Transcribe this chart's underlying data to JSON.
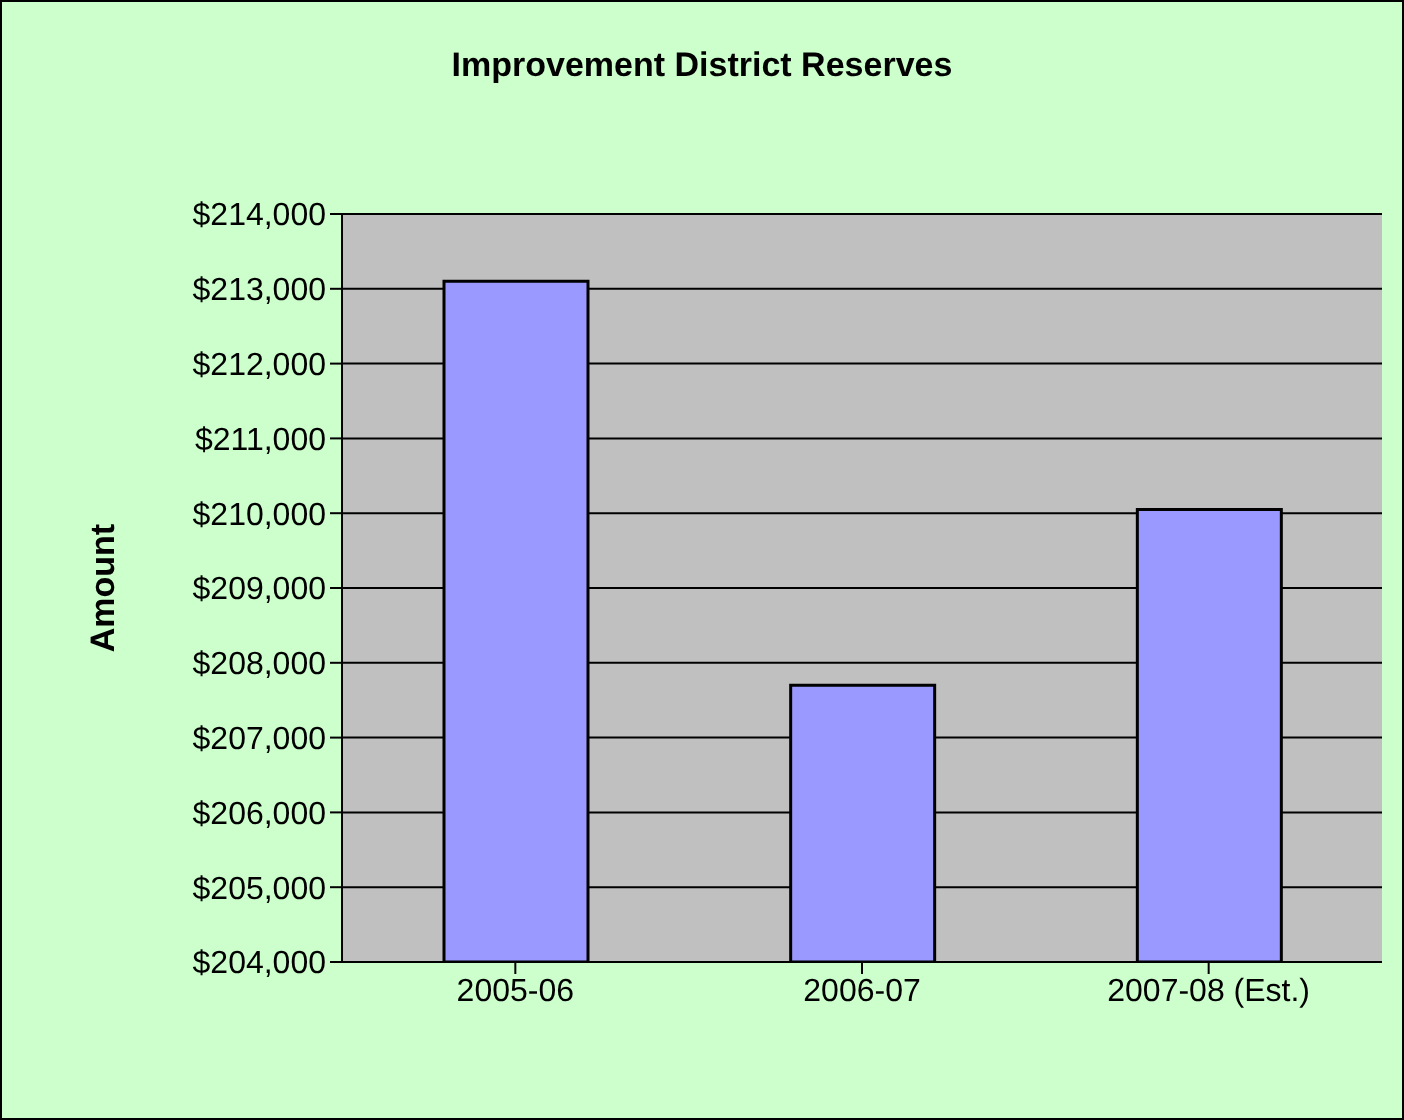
{
  "chart_data": {
    "type": "bar",
    "title": "Improvement District Reserves",
    "ylabel": "Amount",
    "categories": [
      "2005-06",
      "2006-07",
      "2007-08 (Est.)"
    ],
    "values": [
      213100,
      207700,
      210050
    ],
    "color": "#9999ff",
    "ylim": [
      204000,
      214000
    ],
    "yticks": [
      {
        "value": 204000,
        "label": "$204,000"
      },
      {
        "value": 205000,
        "label": "$205,000"
      },
      {
        "value": 206000,
        "label": "$206,000"
      },
      {
        "value": 207000,
        "label": "$207,000"
      },
      {
        "value": 208000,
        "label": "$208,000"
      },
      {
        "value": 209000,
        "label": "$209,000"
      },
      {
        "value": 210000,
        "label": "$210,000"
      },
      {
        "value": 211000,
        "label": "$211,000"
      },
      {
        "value": 212000,
        "label": "$212,000"
      },
      {
        "value": 213000,
        "label": "$213,000"
      },
      {
        "value": 214000,
        "label": "$214,000"
      }
    ],
    "grid": "y",
    "legend": false
  }
}
